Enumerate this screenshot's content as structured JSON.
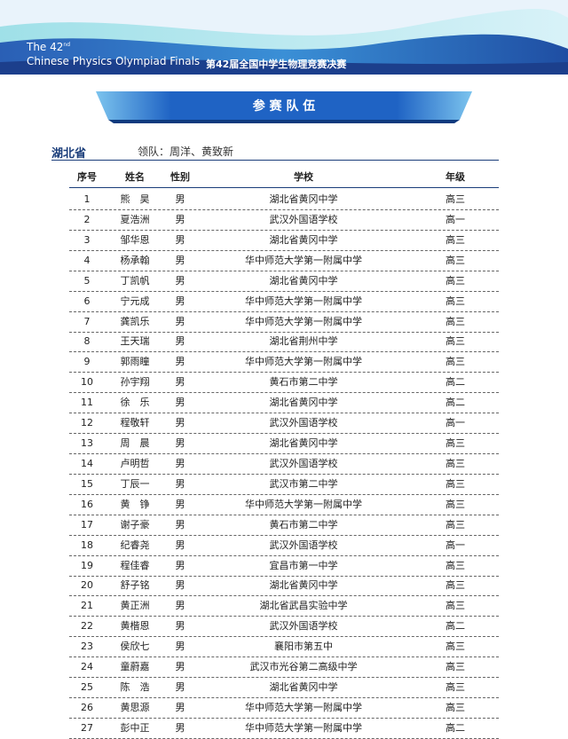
{
  "header": {
    "title_prefix": "The 42",
    "title_suffix": "nd",
    "title_line2": "Chinese Physics Olympiad Finals",
    "title_cn": "第42届全国中学生物理竞赛决赛"
  },
  "banner": "参 赛 队 伍",
  "team": {
    "province": "湖北省",
    "leaders": "领队：周洋、黄致新"
  },
  "table": {
    "columns": [
      "序号",
      "姓名",
      "性别",
      "学校",
      "年级"
    ],
    "rows": [
      [
        "1",
        "熊　昊",
        "男",
        "湖北省黄冈中学",
        "高三"
      ],
      [
        "2",
        "夏浩洲",
        "男",
        "武汉外国语学校",
        "高一"
      ],
      [
        "3",
        "邹华恩",
        "男",
        "湖北省黄冈中学",
        "高三"
      ],
      [
        "4",
        "杨承翰",
        "男",
        "华中师范大学第一附属中学",
        "高三"
      ],
      [
        "5",
        "丁凯帆",
        "男",
        "湖北省黄冈中学",
        "高三"
      ],
      [
        "6",
        "宁元成",
        "男",
        "华中师范大学第一附属中学",
        "高三"
      ],
      [
        "7",
        "龚凯乐",
        "男",
        "华中师范大学第一附属中学",
        "高三"
      ],
      [
        "8",
        "王天瑞",
        "男",
        "湖北省荆州中学",
        "高三"
      ],
      [
        "9",
        "郭雨瞳",
        "男",
        "华中师范大学第一附属中学",
        "高三"
      ],
      [
        "10",
        "孙宇翔",
        "男",
        "黄石市第二中学",
        "高二"
      ],
      [
        "11",
        "徐　乐",
        "男",
        "湖北省黄冈中学",
        "高二"
      ],
      [
        "12",
        "程敬轩",
        "男",
        "武汉外国语学校",
        "高一"
      ],
      [
        "13",
        "周　晨",
        "男",
        "湖北省黄冈中学",
        "高三"
      ],
      [
        "14",
        "卢明哲",
        "男",
        "武汉外国语学校",
        "高三"
      ],
      [
        "15",
        "丁辰一",
        "男",
        "武汉市第二中学",
        "高三"
      ],
      [
        "16",
        "黄　铮",
        "男",
        "华中师范大学第一附属中学",
        "高三"
      ],
      [
        "17",
        "谢子豪",
        "男",
        "黄石市第二中学",
        "高三"
      ],
      [
        "18",
        "纪睿尧",
        "男",
        "武汉外国语学校",
        "高一"
      ],
      [
        "19",
        "程佳睿",
        "男",
        "宜昌市第一中学",
        "高三"
      ],
      [
        "20",
        "舒子铭",
        "男",
        "湖北省黄冈中学",
        "高三"
      ],
      [
        "21",
        "黄正洲",
        "男",
        "湖北省武昌实验中学",
        "高三"
      ],
      [
        "22",
        "黄楷恩",
        "男",
        "武汉外国语学校",
        "高二"
      ],
      [
        "23",
        "侯欣七",
        "男",
        "襄阳市第五中",
        "高三"
      ],
      [
        "24",
        "童蔚嘉",
        "男",
        "武汉市光谷第二高级中学",
        "高三"
      ],
      [
        "25",
        "陈　浩",
        "男",
        "湖北省黄冈中学",
        "高三"
      ],
      [
        "26",
        "黄思源",
        "男",
        "华中师范大学第一附属中学",
        "高三"
      ],
      [
        "27",
        "彭中正",
        "男",
        "华中师范大学第一附属中学",
        "高二"
      ]
    ]
  }
}
